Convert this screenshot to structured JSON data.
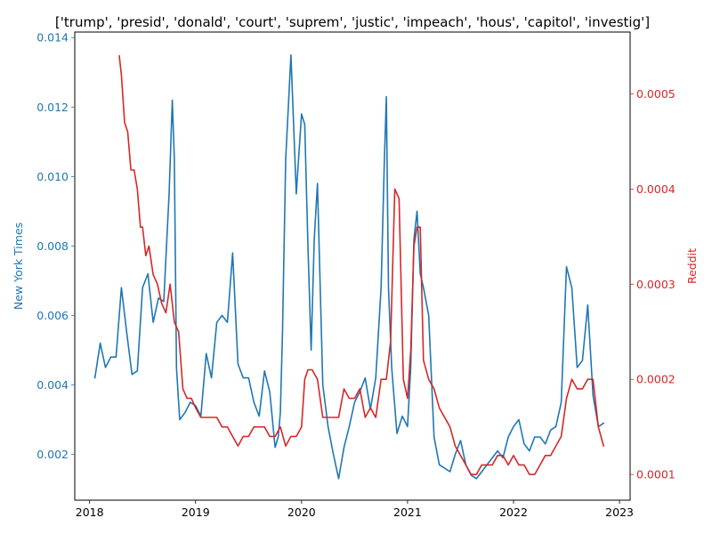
{
  "chart_data": {
    "type": "line",
    "title": "['trump', 'presid', 'donald', 'court', 'suprem', 'justic', 'impeach', 'hous', 'capitol', 'investig']",
    "xlabel": "",
    "xlim": [
      2017.86,
      2023.1
    ],
    "x_ticks": [
      2018,
      2019,
      2020,
      2021,
      2022,
      2023
    ],
    "x_tick_labels": [
      "2018",
      "2019",
      "2020",
      "2021",
      "2022",
      "2023"
    ],
    "grid": false,
    "legend": "none",
    "left_axis": {
      "label": "New York Times",
      "color": "#1f77b4",
      "ylim": [
        0.00068,
        0.01416
      ],
      "ticks": [
        0.002,
        0.004,
        0.006,
        0.008,
        0.01,
        0.012,
        0.014
      ],
      "tick_labels": [
        "0.002",
        "0.004",
        "0.006",
        "0.008",
        "0.010",
        "0.012",
        "0.014"
      ]
    },
    "right_axis": {
      "label": "Reddit",
      "color": "#d62728",
      "ylim": [
        7.3e-05,
        0.000565
      ],
      "ticks": [
        0.0001,
        0.0002,
        0.0003,
        0.0004,
        0.0005
      ],
      "tick_labels": [
        "0.0001",
        "0.0002",
        "0.0003",
        "0.0004",
        "0.0005"
      ]
    },
    "series": [
      {
        "axis": "left",
        "color": "#1f77b4",
        "x": [
          2018.05,
          2018.1,
          2018.15,
          2018.2,
          2018.25,
          2018.3,
          2018.35,
          2018.4,
          2018.45,
          2018.5,
          2018.55,
          2018.6,
          2018.65,
          2018.7,
          2018.75,
          2018.78,
          2018.8,
          2018.82,
          2018.85,
          2018.9,
          2018.95,
          2019.0,
          2019.05,
          2019.1,
          2019.15,
          2019.2,
          2019.25,
          2019.3,
          2019.35,
          2019.4,
          2019.45,
          2019.5,
          2019.55,
          2019.6,
          2019.65,
          2019.7,
          2019.75,
          2019.78,
          2019.8,
          2019.82,
          2019.85,
          2019.9,
          2019.95,
          2020.0,
          2020.03,
          2020.06,
          2020.09,
          2020.12,
          2020.15,
          2020.2,
          2020.25,
          2020.3,
          2020.35,
          2020.4,
          2020.45,
          2020.5,
          2020.55,
          2020.6,
          2020.65,
          2020.7,
          2020.75,
          2020.78,
          2020.8,
          2020.82,
          2020.85,
          2020.9,
          2020.95,
          2021.0,
          2021.03,
          2021.06,
          2021.09,
          2021.12,
          2021.15,
          2021.2,
          2021.25,
          2021.3,
          2021.35,
          2021.4,
          2021.45,
          2021.5,
          2021.55,
          2021.6,
          2021.65,
          2021.7,
          2021.75,
          2021.8,
          2021.85,
          2021.9,
          2021.95,
          2022.0,
          2022.05,
          2022.1,
          2022.15,
          2022.2,
          2022.25,
          2022.3,
          2022.35,
          2022.4,
          2022.45,
          2022.5,
          2022.55,
          2022.6,
          2022.65,
          2022.7,
          2022.75,
          2022.8,
          2022.85
        ],
        "values": [
          0.0042,
          0.0052,
          0.0045,
          0.0048,
          0.0048,
          0.0068,
          0.0055,
          0.0043,
          0.0044,
          0.0068,
          0.0072,
          0.0058,
          0.0065,
          0.0064,
          0.0095,
          0.0122,
          0.0105,
          0.0045,
          0.003,
          0.0032,
          0.0035,
          0.0034,
          0.0031,
          0.0049,
          0.0042,
          0.0058,
          0.006,
          0.0058,
          0.0078,
          0.0046,
          0.0042,
          0.0042,
          0.0035,
          0.0031,
          0.0044,
          0.0038,
          0.0022,
          0.0025,
          0.0032,
          0.0055,
          0.0105,
          0.0135,
          0.0095,
          0.0118,
          0.0115,
          0.008,
          0.005,
          0.0082,
          0.0098,
          0.004,
          0.0028,
          0.002,
          0.0013,
          0.0022,
          0.0028,
          0.0035,
          0.0038,
          0.0042,
          0.0033,
          0.0042,
          0.0068,
          0.0103,
          0.0123,
          0.0068,
          0.0045,
          0.0026,
          0.0031,
          0.0028,
          0.0045,
          0.0082,
          0.009,
          0.0072,
          0.0068,
          0.006,
          0.0025,
          0.0017,
          0.0016,
          0.0015,
          0.002,
          0.0024,
          0.0017,
          0.0014,
          0.0013,
          0.0015,
          0.0017,
          0.0019,
          0.0021,
          0.0019,
          0.0025,
          0.0028,
          0.003,
          0.0023,
          0.0021,
          0.0025,
          0.0025,
          0.0023,
          0.0027,
          0.0028,
          0.0035,
          0.0074,
          0.0068,
          0.0045,
          0.0047,
          0.0063,
          0.0037,
          0.0028,
          0.0029
        ]
      },
      {
        "axis": "right",
        "color": "#d62728",
        "x": [
          2018.28,
          2018.3,
          2018.33,
          2018.36,
          2018.39,
          2018.42,
          2018.45,
          2018.48,
          2018.5,
          2018.53,
          2018.56,
          2018.6,
          2018.64,
          2018.68,
          2018.72,
          2018.76,
          2018.8,
          2018.84,
          2018.88,
          2018.92,
          2018.96,
          2019.0,
          2019.05,
          2019.1,
          2019.15,
          2019.2,
          2019.25,
          2019.3,
          2019.35,
          2019.4,
          2019.45,
          2019.5,
          2019.55,
          2019.6,
          2019.65,
          2019.7,
          2019.75,
          2019.8,
          2019.85,
          2019.9,
          2019.95,
          2020.0,
          2020.03,
          2020.06,
          2020.1,
          2020.15,
          2020.2,
          2020.25,
          2020.3,
          2020.35,
          2020.4,
          2020.45,
          2020.5,
          2020.55,
          2020.6,
          2020.65,
          2020.7,
          2020.75,
          2020.8,
          2020.84,
          2020.88,
          2020.92,
          2020.96,
          2021.0,
          2021.03,
          2021.06,
          2021.09,
          2021.12,
          2021.15,
          2021.2,
          2021.25,
          2021.3,
          2021.35,
          2021.4,
          2021.45,
          2021.5,
          2021.55,
          2021.6,
          2021.65,
          2021.7,
          2021.75,
          2021.8,
          2021.85,
          2021.9,
          2021.95,
          2022.0,
          2022.05,
          2022.1,
          2022.15,
          2022.2,
          2022.25,
          2022.3,
          2022.35,
          2022.4,
          2022.45,
          2022.5,
          2022.55,
          2022.6,
          2022.65,
          2022.7,
          2022.75,
          2022.8,
          2022.85
        ],
        "values": [
          0.00054,
          0.00052,
          0.00047,
          0.00046,
          0.00042,
          0.00042,
          0.0004,
          0.00036,
          0.00036,
          0.00033,
          0.00034,
          0.00031,
          0.0003,
          0.00028,
          0.00027,
          0.0003,
          0.00026,
          0.00025,
          0.00019,
          0.00018,
          0.00018,
          0.00017,
          0.00016,
          0.00016,
          0.00016,
          0.00016,
          0.00015,
          0.00015,
          0.00014,
          0.00013,
          0.00014,
          0.00014,
          0.00015,
          0.00015,
          0.00015,
          0.00014,
          0.00014,
          0.00015,
          0.00013,
          0.00014,
          0.00014,
          0.00015,
          0.0002,
          0.00021,
          0.00021,
          0.0002,
          0.00016,
          0.00016,
          0.00016,
          0.00016,
          0.00019,
          0.00018,
          0.00018,
          0.00019,
          0.00016,
          0.00017,
          0.00016,
          0.0002,
          0.0002,
          0.00024,
          0.0004,
          0.00039,
          0.0002,
          0.00018,
          0.00023,
          0.00034,
          0.00036,
          0.00036,
          0.00022,
          0.0002,
          0.00019,
          0.00017,
          0.00016,
          0.00015,
          0.00013,
          0.00012,
          0.00011,
          0.0001,
          0.0001,
          0.00011,
          0.00011,
          0.00011,
          0.00012,
          0.00012,
          0.00011,
          0.00012,
          0.00011,
          0.00011,
          0.0001,
          0.0001,
          0.00011,
          0.00012,
          0.00012,
          0.00013,
          0.00014,
          0.00018,
          0.0002,
          0.00019,
          0.00019,
          0.0002,
          0.0002,
          0.00015,
          0.00013
        ]
      }
    ]
  }
}
